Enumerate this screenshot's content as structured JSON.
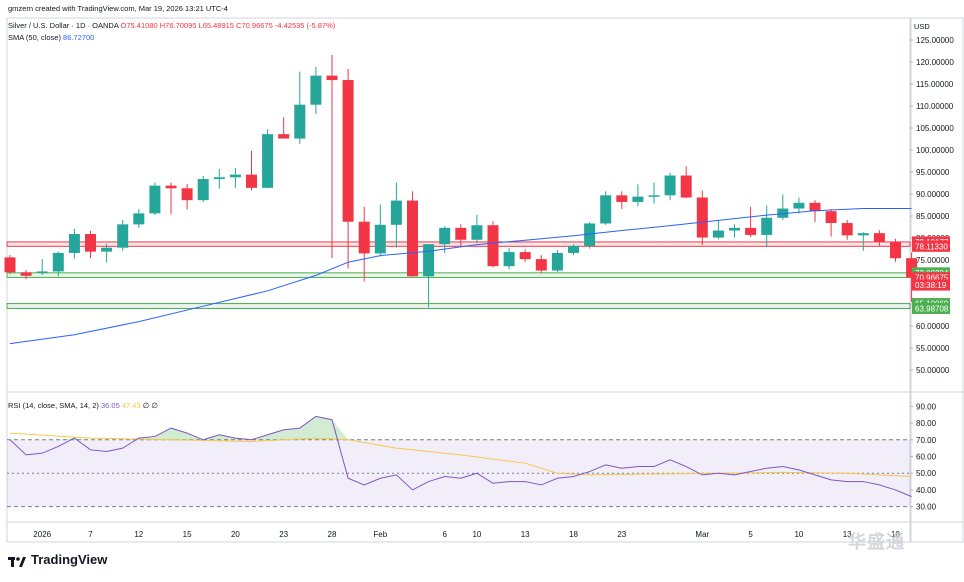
{
  "header": {
    "author_line": "gmzern created with TradingView.com, Mar 19, 2026 13:21 UTC-4",
    "symbol": "Silver / U.S. Dollar · 1D · OANDA",
    "ohlc_text": "O75.41080 H76.70095 L65.48915 C70.96675 -4.42535 (-5.87%)",
    "sma_label": "SMA (50, close)",
    "sma_value": "86.72700",
    "rsi_label": "RSI (14, close, SMA, 14, 2)",
    "rsi_value": "36.05",
    "rsi_sma_value": "47.43",
    "rsi_extra": "∅ ∅"
  },
  "currency": "USD",
  "brand": "TradingView",
  "watermark": "华盛通",
  "colors": {
    "up": "#26A69A",
    "down": "#F23645",
    "sma": "#2962FF",
    "rsi": "#7E57C2",
    "rsi_sma": "#F7C948"
  },
  "price_tags": [
    {
      "text": "79.10177",
      "price": 79.10177,
      "color": "#F23645"
    },
    {
      "text": "78.11330",
      "price": 78.1133,
      "color": "#F23645"
    },
    {
      "text": "72.08204",
      "price": 72.08204,
      "color": "#4CAF50"
    },
    {
      "text": "71.04087",
      "price": 71.04087,
      "color": "#4CAF50"
    },
    {
      "text": "70.96675",
      "price": 70.96675,
      "color": "#F23645"
    },
    {
      "text": "03:38:19",
      "price": 69.3,
      "color": "#F23645"
    },
    {
      "text": "65.10069",
      "price": 65.10069,
      "color": "#4CAF50"
    },
    {
      "text": "63.98708",
      "price": 63.98708,
      "color": "#4CAF50"
    }
  ],
  "chart_data": [
    {
      "type": "candlestick",
      "price_ticks": [
        "125.00000",
        "120.00000",
        "115.00000",
        "110.00000",
        "105.00000",
        "100.00000",
        "95.00000",
        "90.00000",
        "85.00000",
        "80.00000",
        "75.00000",
        "70.00000",
        "65.00000",
        "60.00000",
        "55.00000",
        "50.00000"
      ],
      "ylim": [
        50,
        125
      ],
      "x_ticks": [
        {
          "label": "2026",
          "index": 2
        },
        {
          "label": "7",
          "index": 5
        },
        {
          "label": "12",
          "index": 8
        },
        {
          "label": "15",
          "index": 11
        },
        {
          "label": "20",
          "index": 14
        },
        {
          "label": "23",
          "index": 17
        },
        {
          "label": "28",
          "index": 20
        },
        {
          "label": "Feb",
          "index": 23
        },
        {
          "label": "6",
          "index": 27
        },
        {
          "label": "10",
          "index": 29
        },
        {
          "label": "13",
          "index": 32
        },
        {
          "label": "18",
          "index": 35
        },
        {
          "label": "23",
          "index": 38
        },
        {
          "label": "Mar",
          "index": 43
        },
        {
          "label": "5",
          "index": 46
        },
        {
          "label": "10",
          "index": 49
        },
        {
          "label": "13",
          "index": 52
        },
        {
          "label": "18",
          "index": 55
        }
      ],
      "horizontal_levels": [
        {
          "low": 78.1133,
          "high": 79.10177,
          "color": "#F23645"
        },
        {
          "low": 71.04087,
          "high": 72.08204,
          "color": "#4CAF50"
        },
        {
          "low": 63.98708,
          "high": 65.10069,
          "color": "#4CAF50"
        }
      ],
      "candles": [
        [
          75.6,
          76.1,
          71.8,
          72.2
        ],
        [
          72.2,
          72.7,
          70.6,
          71.4
        ],
        [
          72.1,
          75.2,
          71.6,
          72.4
        ],
        [
          72.4,
          76.9,
          71.3,
          76.6
        ],
        [
          76.6,
          82.1,
          75.3,
          80.9
        ],
        [
          80.9,
          81.6,
          75.4,
          76.9
        ],
        [
          76.9,
          78.7,
          74.4,
          77.8
        ],
        [
          77.8,
          84.1,
          77.1,
          83.1
        ],
        [
          83.1,
          86.6,
          82.3,
          85.6
        ],
        [
          85.6,
          92.6,
          85.2,
          91.9
        ],
        [
          91.9,
          92.6,
          85.4,
          91.3
        ],
        [
          91.3,
          92.3,
          86.5,
          88.6
        ],
        [
          88.6,
          94.1,
          88.2,
          93.4
        ],
        [
          93.4,
          95.7,
          91.2,
          93.8
        ],
        [
          93.8,
          95.9,
          91.4,
          94.4
        ],
        [
          94.4,
          99.8,
          90.8,
          91.4
        ],
        [
          91.4,
          104.7,
          91.3,
          103.6
        ],
        [
          103.6,
          107.4,
          102.8,
          102.6
        ],
        [
          102.6,
          117.8,
          101.4,
          110.3
        ],
        [
          110.3,
          118.9,
          108.2,
          116.9
        ],
        [
          116.9,
          121.6,
          75.4,
          115.9
        ],
        [
          115.9,
          118.4,
          73.1,
          83.7
        ],
        [
          83.7,
          87.1,
          70.1,
          76.5
        ],
        [
          76.5,
          87.6,
          75.8,
          83.0
        ],
        [
          83.0,
          92.6,
          77.8,
          88.5
        ],
        [
          88.5,
          90.6,
          71.2,
          71.3
        ],
        [
          71.3,
          78.4,
          64.2,
          78.6
        ],
        [
          78.6,
          82.7,
          76.6,
          82.3
        ],
        [
          82.3,
          83.1,
          78.2,
          79.6
        ],
        [
          79.6,
          85.3,
          78.8,
          82.9
        ],
        [
          82.9,
          83.8,
          73.3,
          73.6
        ],
        [
          73.6,
          77.7,
          72.9,
          76.8
        ],
        [
          76.8,
          77.4,
          74.6,
          75.2
        ],
        [
          75.2,
          76.1,
          72.1,
          72.6
        ],
        [
          72.6,
          77.3,
          72.3,
          76.6
        ],
        [
          76.6,
          78.6,
          76.1,
          78.2
        ],
        [
          78.2,
          83.6,
          77.6,
          83.3
        ],
        [
          83.3,
          90.6,
          83.0,
          89.7
        ],
        [
          89.7,
          90.6,
          86.6,
          88.2
        ],
        [
          88.2,
          92.2,
          87.2,
          89.4
        ],
        [
          89.4,
          92.6,
          87.8,
          89.7
        ],
        [
          89.7,
          94.8,
          88.6,
          94.2
        ],
        [
          94.2,
          96.3,
          89.1,
          89.2
        ],
        [
          89.2,
          90.8,
          78.4,
          80.1
        ],
        [
          80.1,
          84.1,
          79.7,
          81.7
        ],
        [
          81.7,
          83.1,
          80.1,
          82.3
        ],
        [
          82.3,
          87.1,
          80.2,
          80.7
        ],
        [
          80.7,
          87.4,
          77.9,
          84.6
        ],
        [
          84.6,
          89.9,
          84.1,
          86.7
        ],
        [
          86.7,
          89.2,
          85.6,
          88.0
        ],
        [
          88.0,
          88.6,
          83.6,
          86.1
        ],
        [
          86.1,
          86.6,
          80.3,
          83.4
        ],
        [
          83.4,
          84.1,
          79.6,
          80.6
        ],
        [
          80.6,
          81.3,
          77.1,
          81.1
        ],
        [
          81.1,
          81.8,
          78.2,
          79.1
        ],
        [
          79.1,
          79.8,
          74.6,
          75.4
        ],
        [
          75.41,
          76.7,
          65.49,
          70.97
        ]
      ],
      "sma": [
        [
          0,
          56.0
        ],
        [
          4,
          58.0
        ],
        [
          8,
          61.0
        ],
        [
          12,
          64.5
        ],
        [
          16,
          68.0
        ],
        [
          19,
          71.5
        ],
        [
          21,
          74.5
        ],
        [
          23,
          76.0
        ],
        [
          26,
          77.0
        ],
        [
          29,
          78.5
        ],
        [
          32,
          79.5
        ],
        [
          35,
          80.5
        ],
        [
          38,
          81.7
        ],
        [
          41,
          82.8
        ],
        [
          44,
          84.0
        ],
        [
          47,
          85.2
        ],
        [
          50,
          86.2
        ],
        [
          53,
          86.7
        ],
        [
          56,
          86.7
        ]
      ]
    },
    {
      "type": "line",
      "title": "RSI (14, close, SMA, 14, 2)",
      "rsi_ticks": [
        "90.00",
        "80.00",
        "70.00",
        "60.00",
        "50.00",
        "40.00",
        "30.00"
      ],
      "ylim": [
        25,
        95
      ],
      "bands": {
        "upper": 70,
        "middle": 50,
        "lower": 30
      },
      "series": [
        {
          "name": "RSI",
          "values": [
            [
              0,
              70
            ],
            [
              1,
              61
            ],
            [
              2,
              62
            ],
            [
              3,
              66
            ],
            [
              4,
              71
            ],
            [
              5,
              64
            ],
            [
              6,
              63
            ],
            [
              7,
              65
            ],
            [
              8,
              71
            ],
            [
              9,
              72
            ],
            [
              10,
              77
            ],
            [
              11,
              74
            ],
            [
              12,
              70
            ],
            [
              13,
              73
            ],
            [
              14,
              71
            ],
            [
              15,
              70
            ],
            [
              16,
              73
            ],
            [
              17,
              76
            ],
            [
              18,
              77
            ],
            [
              19,
              84
            ],
            [
              20,
              82
            ],
            [
              21,
              47
            ],
            [
              22,
              43
            ],
            [
              23,
              47
            ],
            [
              24,
              49
            ],
            [
              25,
              40
            ],
            [
              26,
              45
            ],
            [
              27,
              48
            ],
            [
              28,
              47
            ],
            [
              29,
              50
            ],
            [
              30,
              44
            ],
            [
              31,
              45
            ],
            [
              32,
              45
            ],
            [
              33,
              43
            ],
            [
              34,
              47
            ],
            [
              35,
              48
            ],
            [
              36,
              51
            ],
            [
              37,
              55
            ],
            [
              38,
              53
            ],
            [
              39,
              54
            ],
            [
              40,
              54
            ],
            [
              41,
              58
            ],
            [
              42,
              54
            ],
            [
              43,
              49
            ],
            [
              44,
              50
            ],
            [
              45,
              49
            ],
            [
              46,
              51
            ],
            [
              47,
              53
            ],
            [
              48,
              54
            ],
            [
              49,
              52
            ],
            [
              50,
              49
            ],
            [
              51,
              46
            ],
            [
              52,
              45
            ],
            [
              53,
              45
            ],
            [
              54,
              43
            ],
            [
              55,
              40
            ],
            [
              56,
              36
            ]
          ]
        },
        {
          "name": "RSI-based MA",
          "values": [
            [
              0,
              74
            ],
            [
              5,
              71
            ],
            [
              10,
              70
            ],
            [
              15,
              69
            ],
            [
              19,
              71
            ],
            [
              21,
              70
            ],
            [
              24,
              65
            ],
            [
              28,
              61
            ],
            [
              32,
              56
            ],
            [
              34,
              50
            ],
            [
              36,
              49
            ],
            [
              40,
              49.5
            ],
            [
              44,
              50
            ],
            [
              48,
              50.5
            ],
            [
              52,
              50
            ],
            [
              56,
              48
            ]
          ]
        }
      ]
    }
  ]
}
